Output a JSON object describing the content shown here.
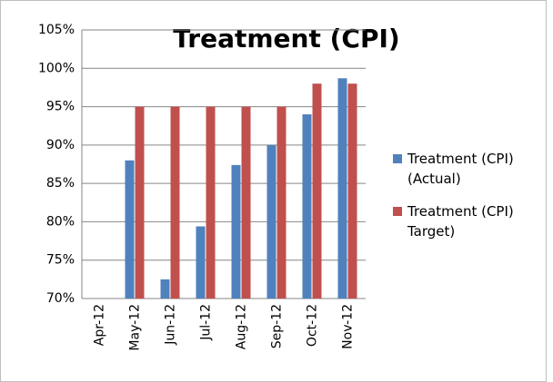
{
  "chart_data": {
    "type": "bar",
    "title": "Treatment (CPI)",
    "categories": [
      "Apr-12",
      "May-12",
      "Jun-12",
      "Jul-12",
      "Aug-12",
      "Sep-12",
      "Oct-12",
      "Nov-12"
    ],
    "series": [
      {
        "name": "Treatment (CPI) (Actual)",
        "color": "#4f81bd",
        "values": [
          null,
          88,
          72.5,
          79.4,
          87.4,
          90,
          94,
          98.7
        ]
      },
      {
        "name": "Treatment (CPI) Target)",
        "color": "#c0504d",
        "values": [
          null,
          95,
          95,
          95,
          95,
          95,
          98,
          98
        ]
      }
    ],
    "ylim": [
      70,
      105
    ],
    "yticks": [
      {
        "value": 70,
        "label": "70%"
      },
      {
        "value": 75,
        "label": "75%"
      },
      {
        "value": 80,
        "label": "80%"
      },
      {
        "value": 85,
        "label": "85%"
      },
      {
        "value": 90,
        "label": "90%"
      },
      {
        "value": 95,
        "label": "95%"
      },
      {
        "value": 100,
        "label": "100%"
      },
      {
        "value": 105,
        "label": "105%"
      }
    ],
    "grid": true,
    "legend": "right"
  }
}
